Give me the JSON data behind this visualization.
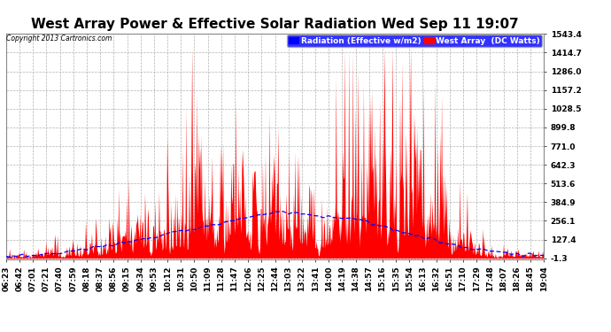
{
  "title": "West Array Power & Effective Solar Radiation Wed Sep 11 19:07",
  "copyright": "Copyright 2013 Cartronics.com",
  "legend_labels": [
    "Radiation (Effective w/m2)",
    "West Array  (DC Watts)"
  ],
  "legend_colors": [
    "blue",
    "red"
  ],
  "yticks": [
    1543.4,
    1414.7,
    1286.0,
    1157.2,
    1028.5,
    899.8,
    771.0,
    642.3,
    513.6,
    384.9,
    256.1,
    127.4,
    -1.3
  ],
  "ymin": -1.3,
  "ymax": 1543.4,
  "bg_color": "#ffffff",
  "plot_bg_color": "#ffffff",
  "grid_color": "#b0b0b0",
  "title_fontsize": 11,
  "tick_fontsize": 6.5,
  "x_tick_rotation": 90,
  "red_fill_color": "#ff0000",
  "blue_line_color": "#0000ff",
  "xtick_labels": [
    "06:23",
    "06:42",
    "07:01",
    "07:21",
    "07:40",
    "07:59",
    "08:18",
    "08:37",
    "08:56",
    "09:15",
    "09:34",
    "09:53",
    "10:12",
    "10:31",
    "10:50",
    "11:09",
    "11:28",
    "11:47",
    "12:06",
    "12:25",
    "12:44",
    "13:03",
    "13:22",
    "13:41",
    "14:00",
    "14:19",
    "14:38",
    "14:57",
    "15:16",
    "15:35",
    "15:54",
    "16:13",
    "16:32",
    "16:51",
    "17:10",
    "17:29",
    "17:48",
    "18:07",
    "18:26",
    "18:45",
    "19:04"
  ]
}
